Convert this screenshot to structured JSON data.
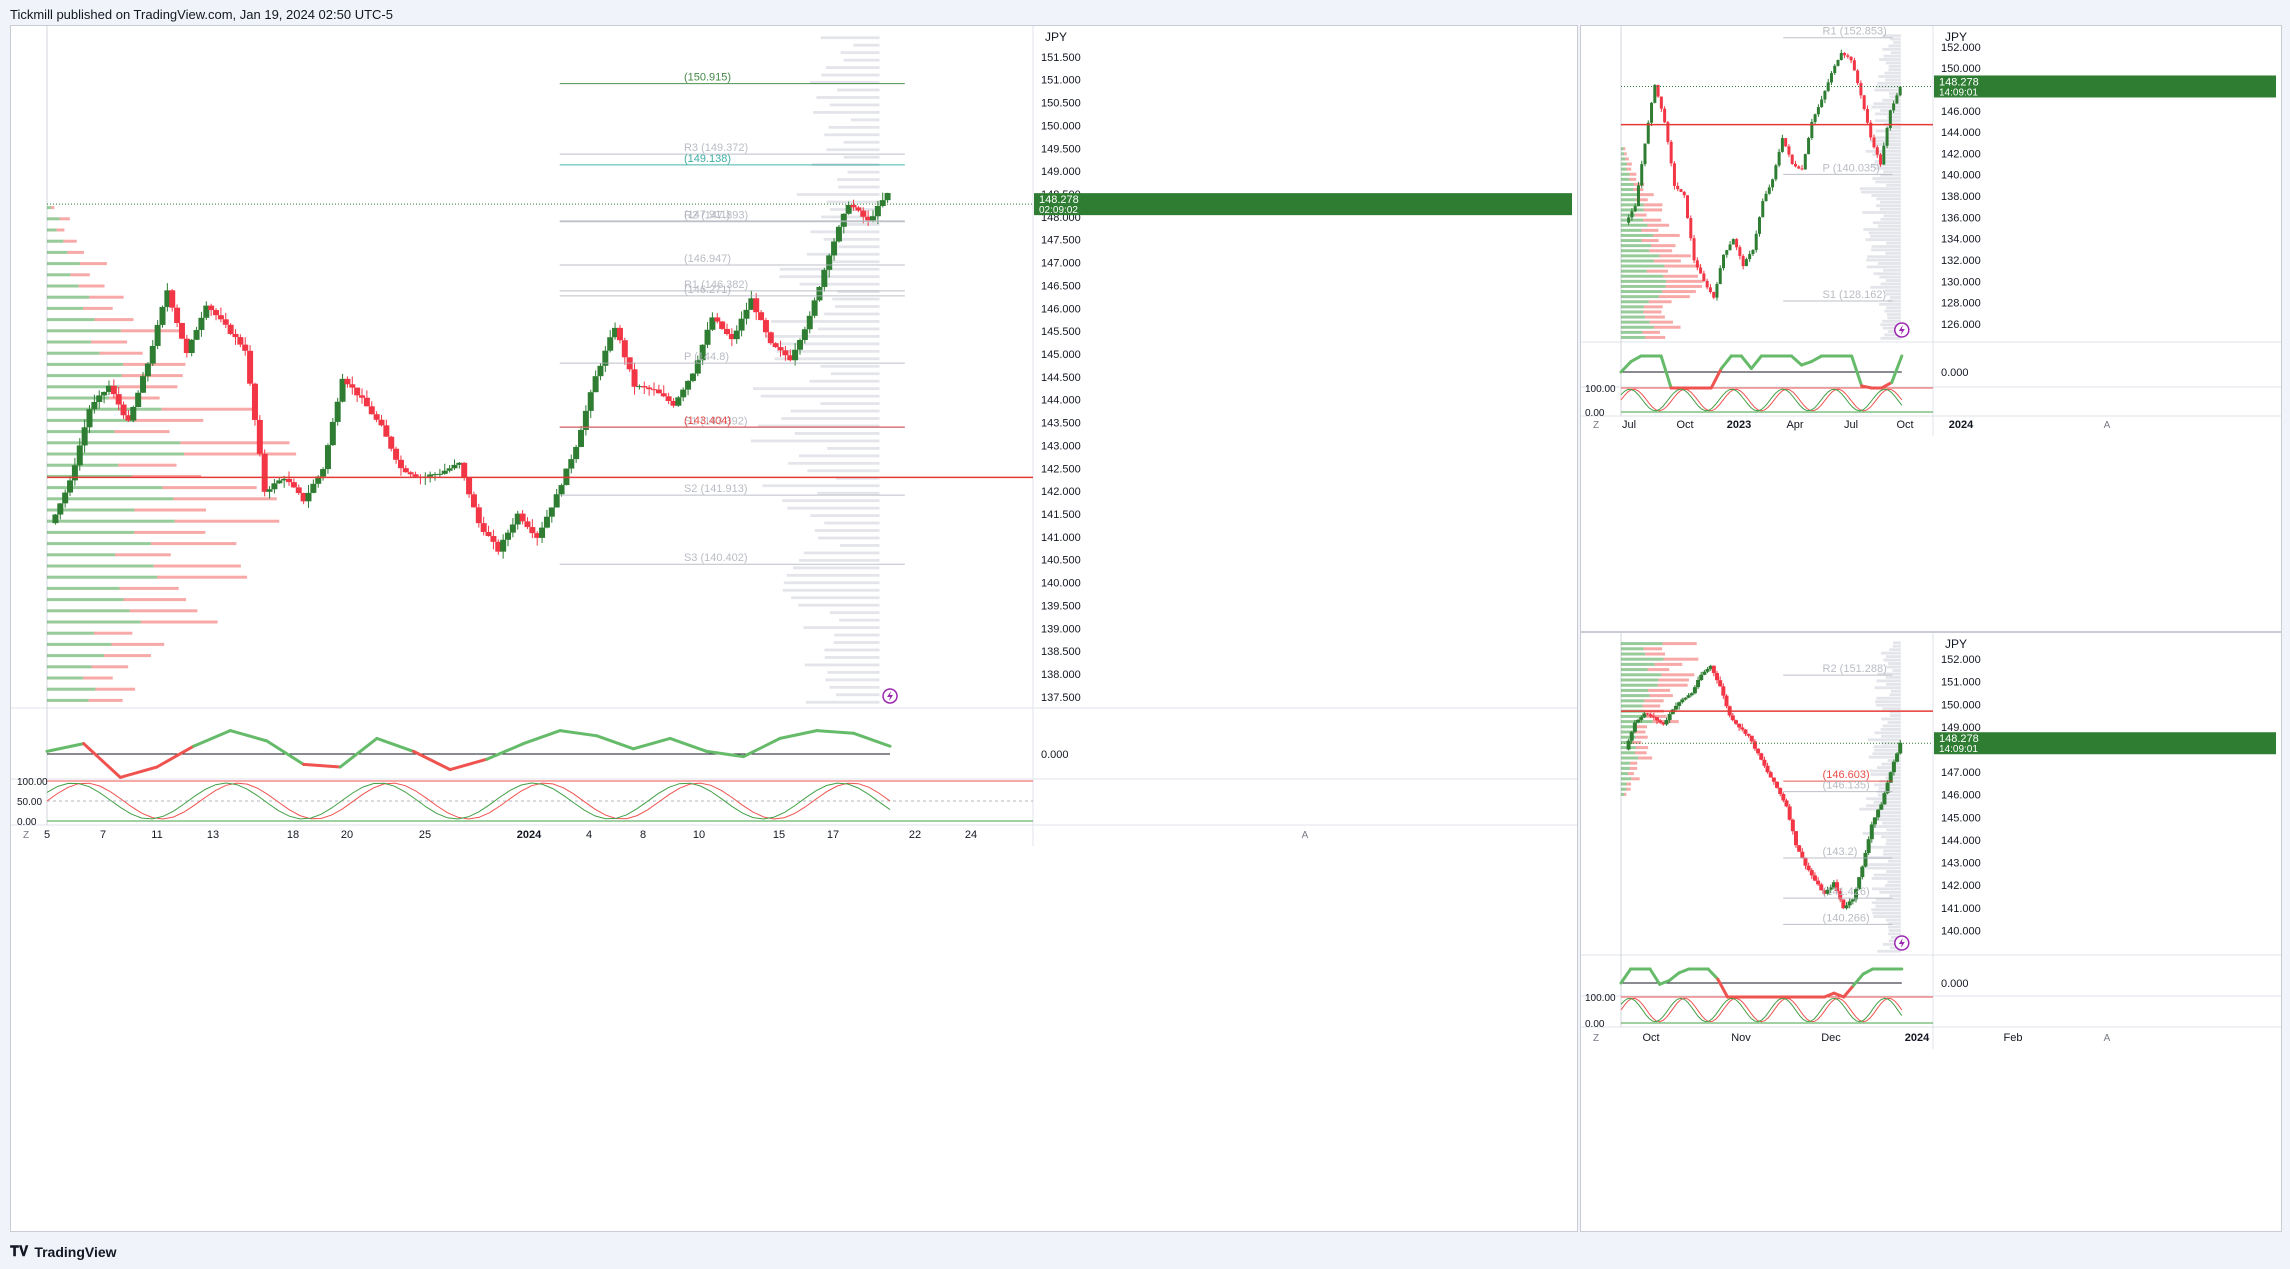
{
  "header": {
    "published": "Tickmill published on TradingView.com, Jan 19, 2024 02:50 UTC-5"
  },
  "footer": {
    "brand": "TradingView"
  },
  "common": {
    "currency": "JPY",
    "z_label": "Z",
    "a_label": "A",
    "last_price": "148.278"
  },
  "colors": {
    "up": "#2e7d32",
    "down": "#f23645",
    "volume_profile": "#d1d4dc",
    "ma": "#e0e0e0",
    "accent_green": "#089981",
    "accent_red": "#e53935"
  },
  "chart_data": [
    {
      "type": "line",
      "title": "",
      "panel": "main",
      "countdown": "02:09:02",
      "ylim": [
        137.3,
        152.0
      ],
      "y_ticks": [
        "151.500",
        "151.000",
        "150.500",
        "150.000",
        "149.500",
        "149.000",
        "148.500",
        "148.000",
        "147.500",
        "147.000",
        "146.500",
        "146.000",
        "145.500",
        "145.000",
        "144.500",
        "144.000",
        "143.500",
        "143.000",
        "142.500",
        "142.000",
        "141.500",
        "141.000",
        "140.500",
        "140.000",
        "139.500",
        "139.000",
        "138.500",
        "138.000",
        "137.500"
      ],
      "x_ticks": [
        "5",
        "7",
        "11",
        "13",
        "18",
        "20",
        "25",
        "2024",
        "4",
        "8",
        "10",
        "15",
        "17",
        "22",
        "24"
      ],
      "levels": [
        {
          "label": "(150.915)",
          "value": 150.915,
          "color": "#2e7d32"
        },
        {
          "label": "R3 (149.372)",
          "value": 149.372,
          "color": "#b2b5be"
        },
        {
          "label": "(149.138)",
          "value": 149.138,
          "color": "#26a69a"
        },
        {
          "label": "R2 (147.893)",
          "value": 147.893,
          "color": "#b2b5be"
        },
        {
          "label": "(147.911)",
          "value": 147.911,
          "color": "#b2b5be"
        },
        {
          "label": "(146.947)",
          "value": 146.947,
          "color": "#b2b5be"
        },
        {
          "label": "R1 (146.382)",
          "value": 146.382,
          "color": "#b2b5be"
        },
        {
          "label": "(146.271)",
          "value": 146.271,
          "color": "#b2b5be"
        },
        {
          "label": "P (144.8)",
          "value": 144.8,
          "color": "#b2b5be"
        },
        {
          "label": "S1 (143.392)",
          "value": 143.392,
          "color": "#b2b5be"
        },
        {
          "label": "(143.404)",
          "value": 143.404,
          "color": "#e53935"
        },
        {
          "label": "S2 (141.913)",
          "value": 141.913,
          "color": "#b2b5be"
        },
        {
          "label": "S3 (140.402)",
          "value": 140.402,
          "color": "#b2b5be"
        }
      ],
      "price_path": [
        141.3,
        142.2,
        143.8,
        144.3,
        143.5,
        144.8,
        146.4,
        145.0,
        146.1,
        145.6,
        145.1,
        142.0,
        142.3,
        141.8,
        142.5,
        144.5,
        144.0,
        143.4,
        142.5,
        142.3,
        142.4,
        142.6,
        141.3,
        140.7,
        141.5,
        141.0,
        141.9,
        143.0,
        144.5,
        145.6,
        144.3,
        144.2,
        143.9,
        144.6,
        145.8,
        145.3,
        146.2,
        145.2,
        144.9,
        145.8,
        147.2,
        148.3,
        147.9,
        148.5
      ],
      "oscillator": {
        "label": "0.000",
        "values": [
          0.1,
          0.4,
          -0.9,
          -0.5,
          0.3,
          0.9,
          0.5,
          -0.4,
          -0.5,
          0.6,
          0.1,
          -0.6,
          -0.2,
          0.4,
          0.9,
          0.7,
          0.2,
          0.6,
          0.1,
          -0.1,
          0.6,
          0.9,
          0.8,
          0.3
        ]
      },
      "stochastic": {
        "labels": [
          "100.00",
          "50.00",
          "0.00"
        ]
      }
    },
    {
      "type": "line",
      "title": "",
      "panel": "top-right",
      "countdown": "14:09:01",
      "ylim": [
        124.5,
        153.2
      ],
      "y_ticks": [
        "152.000",
        "150.000",
        "148.000",
        "146.000",
        "144.000",
        "142.000",
        "140.000",
        "138.000",
        "136.000",
        "134.000",
        "132.000",
        "130.000",
        "128.000",
        "126.000"
      ],
      "x_ticks": [
        "Jul",
        "Oct",
        "2023",
        "Apr",
        "Jul",
        "Oct",
        "2024"
      ],
      "levels": [
        {
          "label": "R1 (152.853)",
          "value": 152.853,
          "color": "#b2b5be"
        },
        {
          "label": "P (140.035)",
          "value": 140.035,
          "color": "#b2b5be"
        },
        {
          "label": "S1 (128.162)",
          "value": 128.162,
          "color": "#b2b5be"
        }
      ],
      "price_path": [
        135.5,
        137.0,
        143.0,
        148.5,
        145.0,
        139.0,
        138.0,
        132.0,
        130.0,
        128.5,
        132.5,
        134.0,
        131.5,
        133.0,
        137.5,
        139.5,
        143.5,
        141.0,
        140.5,
        145.0,
        147.0,
        149.5,
        151.5,
        150.8,
        147.5,
        143.5,
        141.0,
        146.0,
        148.3
      ],
      "oscillator": {
        "label": "0.000"
      },
      "stochastic": {
        "labels": [
          "100.00",
          "0.00"
        ]
      }
    },
    {
      "type": "line",
      "title": "",
      "panel": "bottom-right",
      "countdown": "14:09:01",
      "ylim": [
        139.0,
        152.8
      ],
      "y_ticks": [
        "152.000",
        "151.000",
        "150.000",
        "149.000",
        "148.000",
        "147.000",
        "146.000",
        "145.000",
        "144.000",
        "143.000",
        "142.000",
        "141.000",
        "140.000"
      ],
      "x_ticks": [
        "Oct",
        "Nov",
        "Dec",
        "2024",
        "Feb"
      ],
      "levels": [
        {
          "label": "R2 (151.288)",
          "value": 151.288,
          "color": "#b2b5be"
        },
        {
          "label": "(146.603)",
          "value": 146.603,
          "color": "#e53935"
        },
        {
          "label": "(146.135)",
          "value": 146.135,
          "color": "#b2b5be"
        },
        {
          "label": "(143.2)",
          "value": 143.2,
          "color": "#b2b5be"
        },
        {
          "label": "(141.426)",
          "value": 141.426,
          "color": "#b2b5be"
        },
        {
          "label": "(140.266)",
          "value": 140.266,
          "color": "#b2b5be"
        }
      ],
      "price_path": [
        148.0,
        149.2,
        149.6,
        149.4,
        149.1,
        149.8,
        150.2,
        150.5,
        151.3,
        151.7,
        150.8,
        149.5,
        149.0,
        148.6,
        147.8,
        147.0,
        146.3,
        145.5,
        143.8,
        142.9,
        142.2,
        141.6,
        142.1,
        141.0,
        141.4,
        142.8,
        144.7,
        145.6,
        147.0,
        148.3
      ],
      "oscillator": {
        "label": "0.000"
      },
      "stochastic": {
        "labels": [
          "100.00",
          "0.00"
        ]
      }
    }
  ]
}
